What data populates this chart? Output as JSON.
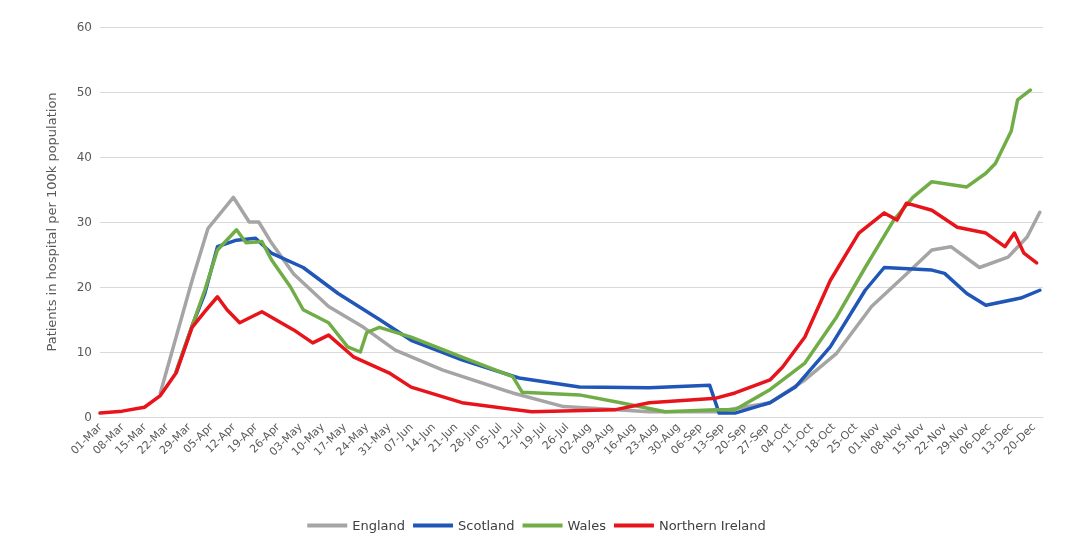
{
  "chart_data": {
    "type": "line",
    "ylabel": "Patients in hospital per 100k population",
    "ylim": [
      0,
      60
    ],
    "yticks": [
      0,
      10,
      20,
      30,
      40,
      50,
      60
    ],
    "xlim": [
      "--03-01",
      "--12-23"
    ],
    "xticks": [
      {
        "value": "--03-01",
        "label": "01-Mar"
      },
      {
        "value": "--03-08",
        "label": "08-Mar"
      },
      {
        "value": "--03-15",
        "label": "15-Mar"
      },
      {
        "value": "--03-22",
        "label": "22-Mar"
      },
      {
        "value": "--03-29",
        "label": "29-Mar"
      },
      {
        "value": "--04-05",
        "label": "05-Apr"
      },
      {
        "value": "--04-12",
        "label": "12-Apr"
      },
      {
        "value": "--04-19",
        "label": "19-Apr"
      },
      {
        "value": "--04-26",
        "label": "26-Apr"
      },
      {
        "value": "--05-03",
        "label": "03-May"
      },
      {
        "value": "--05-10",
        "label": "10-May"
      },
      {
        "value": "--05-17",
        "label": "17-May"
      },
      {
        "value": "--05-24",
        "label": "24-May"
      },
      {
        "value": "--05-31",
        "label": "31-May"
      },
      {
        "value": "--06-07",
        "label": "07-Jun"
      },
      {
        "value": "--06-14",
        "label": "14-Jun"
      },
      {
        "value": "--06-21",
        "label": "21-Jun"
      },
      {
        "value": "--06-28",
        "label": "28-Jun"
      },
      {
        "value": "--07-05",
        "label": "05-Jul"
      },
      {
        "value": "--07-12",
        "label": "12-Jul"
      },
      {
        "value": "--07-19",
        "label": "19-Jul"
      },
      {
        "value": "--07-26",
        "label": "26-Jul"
      },
      {
        "value": "--08-02",
        "label": "02-Aug"
      },
      {
        "value": "--08-09",
        "label": "09-Aug"
      },
      {
        "value": "--08-16",
        "label": "16-Aug"
      },
      {
        "value": "--08-23",
        "label": "23-Aug"
      },
      {
        "value": "--08-30",
        "label": "30-Aug"
      },
      {
        "value": "--09-06",
        "label": "06-Sep"
      },
      {
        "value": "--09-13",
        "label": "13-Sep"
      },
      {
        "value": "--09-20",
        "label": "20-Sep"
      },
      {
        "value": "--09-27",
        "label": "27-Sep"
      },
      {
        "value": "--10-04",
        "label": "04-Oct"
      },
      {
        "value": "--10-11",
        "label": "11-Oct"
      },
      {
        "value": "--10-18",
        "label": "18-Oct"
      },
      {
        "value": "--10-25",
        "label": "25-Oct"
      },
      {
        "value": "--11-01",
        "label": "01-Nov"
      },
      {
        "value": "--11-08",
        "label": "08-Nov"
      },
      {
        "value": "--11-15",
        "label": "15-Nov"
      },
      {
        "value": "--11-22",
        "label": "22-Nov"
      },
      {
        "value": "--11-29",
        "label": "29-Nov"
      },
      {
        "value": "--12-06",
        "label": "06-Dec"
      },
      {
        "value": "--12-13",
        "label": "13-Dec"
      },
      {
        "value": "--12-20",
        "label": "20-Dec"
      }
    ],
    "grid": "y",
    "legend": "bottom",
    "marker": "none",
    "line_style": "solid",
    "series": [
      {
        "name": "England",
        "color": "#a5a5a5",
        "x": [
          "--03-20",
          "--03-30",
          "--04-04",
          "--04-12",
          "--04-17",
          "--04-20",
          "--04-24",
          "--05-01",
          "--05-12",
          "--05-23",
          "--06-02",
          "--06-17",
          "--07-09",
          "--07-25",
          "--08-21",
          "--09-11",
          "--09-28",
          "--10-09",
          "--10-19",
          "--10-30",
          "--11-10",
          "--11-18",
          "--11-24",
          "--12-03",
          "--12-12",
          "--12-18",
          "--12-22"
        ],
        "values": [
          3.7,
          21,
          29,
          33.8,
          30,
          30,
          26.8,
          22,
          17,
          13.8,
          10.3,
          7.2,
          3.7,
          1.6,
          0.8,
          0.8,
          2.2,
          5.7,
          9.8,
          17,
          22,
          25.7,
          26.2,
          23,
          24.6,
          27.7,
          31.5
        ]
      },
      {
        "name": "Scotland",
        "color": "#1f56b8",
        "x": [
          "--03-25",
          "--03-30",
          "--04-03",
          "--04-07",
          "--04-13",
          "--04-19",
          "--04-24",
          "--05-04",
          "--05-15",
          "--05-28",
          "--06-07",
          "--06-23",
          "--07-11",
          "--07-30",
          "--08-21",
          "--09-09",
          "--09-12",
          "--09-17",
          "--09-28",
          "--10-06",
          "--10-17",
          "--10-28",
          "--11-03",
          "--11-18",
          "--11-22",
          "--11-29",
          "--12-05",
          "--12-16",
          "--12-22"
        ],
        "values": [
          7,
          14,
          19,
          26.2,
          27.2,
          27.5,
          25.2,
          23,
          19,
          15,
          11.8,
          8.8,
          6,
          4.6,
          4.5,
          4.9,
          0.6,
          0.6,
          2.2,
          4.6,
          10.8,
          19.5,
          23,
          22.6,
          22.1,
          19,
          17.2,
          18.3,
          19.5
        ]
      },
      {
        "name": "Wales",
        "color": "#70ad47",
        "x": [
          "--03-25",
          "--03-30",
          "--04-03",
          "--04-07",
          "--04-13",
          "--04-16",
          "--04-21",
          "--04-24",
          "--04-30",
          "--05-04",
          "--05-12",
          "--05-18",
          "--05-22",
          "--05-24",
          "--05-28",
          "--06-07",
          "--06-23",
          "--07-09",
          "--07-12",
          "--07-30",
          "--08-12",
          "--08-26",
          "--09-11",
          "--09-17",
          "--09-28",
          "--10-09",
          "--10-19",
          "--10-28",
          "--11-06",
          "--11-12",
          "--11-18",
          "--11-29",
          "--12-05",
          "--12-08",
          "--12-13",
          "--12-15",
          "--12-19"
        ],
        "values": [
          7,
          14,
          19.5,
          25.7,
          28.8,
          26.8,
          27,
          24.2,
          20,
          16.5,
          14.5,
          10.8,
          10,
          13,
          13.8,
          12.3,
          9.2,
          6.2,
          3.8,
          3.4,
          2.2,
          0.8,
          1.1,
          1.1,
          4.2,
          8.3,
          15.4,
          23,
          30.3,
          33.8,
          36.2,
          35.4,
          37.5,
          39,
          44,
          48.8,
          50.3
        ]
      },
      {
        "name": "Northern Ireland",
        "color": "#e8141c",
        "x": [
          "--03-01",
          "--03-08",
          "--03-15",
          "--03-20",
          "--03-25",
          "--03-30",
          "--04-03",
          "--04-07",
          "--04-10",
          "--04-14",
          "--04-21",
          "--05-01",
          "--05-07",
          "--05-12",
          "--05-20",
          "--05-31",
          "--06-07",
          "--06-23",
          "--07-15",
          "--08-10",
          "--08-21",
          "--09-11",
          "--09-17",
          "--09-28",
          "--10-02",
          "--10-09",
          "--10-17",
          "--10-26",
          "--11-03",
          "--11-07",
          "--11-10",
          "--11-18",
          "--11-26",
          "--12-05",
          "--12-11",
          "--12-14",
          "--12-17",
          "--12-21"
        ],
        "values": [
          0.6,
          0.9,
          1.5,
          3.3,
          6.8,
          13.8,
          16.2,
          18.5,
          16.5,
          14.5,
          16.2,
          13.4,
          11.4,
          12.6,
          9.2,
          6.8,
          4.6,
          2.2,
          0.8,
          1.1,
          2.2,
          2.9,
          3.7,
          5.7,
          7.7,
          12.3,
          21,
          28.3,
          31.4,
          30.3,
          32.9,
          31.8,
          29.2,
          28.3,
          26.2,
          28.3,
          25.2,
          23.7
        ]
      }
    ]
  }
}
